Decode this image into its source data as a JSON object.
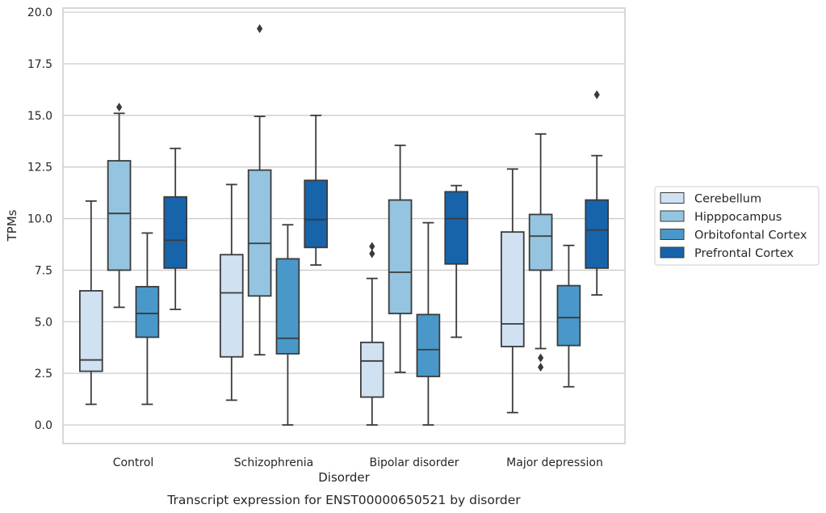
{
  "chart_data": {
    "type": "box",
    "title": "Transcript expression for ENST00000650521 by disorder",
    "xlabel": "Disorder",
    "ylabel": "TPMs",
    "ylim": [
      -0.9,
      20.2
    ],
    "yticks": [
      "0.0",
      "2.5",
      "5.0",
      "7.5",
      "10.0",
      "12.5",
      "15.0",
      "17.5",
      "20.0"
    ],
    "grid": "horizontal",
    "legend_position": "right",
    "categories": [
      "Control",
      "Schizophrenia",
      "Bipolar disorder",
      "Major depression"
    ],
    "series": [
      {
        "name": "Cerebellum",
        "color": "#d0e1f2",
        "boxes": [
          {
            "whislo": 1.0,
            "q1": 2.6,
            "med": 3.15,
            "q3": 6.5,
            "whishi": 10.85,
            "fliers": []
          },
          {
            "whislo": 1.2,
            "q1": 3.3,
            "med": 6.4,
            "q3": 8.25,
            "whishi": 11.65,
            "fliers": []
          },
          {
            "whislo": 0.0,
            "q1": 1.35,
            "med": 3.1,
            "q3": 4.0,
            "whishi": 7.1,
            "fliers": [
              8.3,
              8.65
            ]
          },
          {
            "whislo": 0.6,
            "q1": 3.8,
            "med": 4.9,
            "q3": 9.35,
            "whishi": 12.4,
            "fliers": []
          }
        ]
      },
      {
        "name": "Hipppocampus",
        "color": "#94c4df",
        "boxes": [
          {
            "whislo": 5.7,
            "q1": 7.5,
            "med": 10.25,
            "q3": 12.8,
            "whishi": 15.1,
            "fliers": [
              15.4
            ]
          },
          {
            "whislo": 3.4,
            "q1": 6.25,
            "med": 8.8,
            "q3": 12.35,
            "whishi": 14.95,
            "fliers": [
              19.2
            ]
          },
          {
            "whislo": 2.55,
            "q1": 5.4,
            "med": 7.4,
            "q3": 10.9,
            "whishi": 13.55,
            "fliers": []
          },
          {
            "whislo": 3.7,
            "q1": 7.5,
            "med": 9.15,
            "q3": 10.2,
            "whishi": 14.1,
            "fliers": [
              2.8,
              3.25
            ]
          }
        ]
      },
      {
        "name": "Orbitofontal Cortex",
        "color": "#4a98c9",
        "boxes": [
          {
            "whislo": 1.0,
            "q1": 4.25,
            "med": 5.4,
            "q3": 6.7,
            "whishi": 9.3,
            "fliers": []
          },
          {
            "whislo": 0.0,
            "q1": 3.45,
            "med": 4.2,
            "q3": 8.05,
            "whishi": 9.7,
            "fliers": []
          },
          {
            "whislo": 0.0,
            "q1": 2.35,
            "med": 3.65,
            "q3": 5.35,
            "whishi": 9.8,
            "fliers": []
          },
          {
            "whislo": 1.85,
            "q1": 3.85,
            "med": 5.2,
            "q3": 6.75,
            "whishi": 8.7,
            "fliers": []
          }
        ]
      },
      {
        "name": "Prefrontal Cortex",
        "color": "#1764ab",
        "boxes": [
          {
            "whislo": 5.6,
            "q1": 7.6,
            "med": 8.95,
            "q3": 11.05,
            "whishi": 13.4,
            "fliers": []
          },
          {
            "whislo": 7.75,
            "q1": 8.6,
            "med": 9.95,
            "q3": 11.85,
            "whishi": 15.0,
            "fliers": []
          },
          {
            "whislo": 4.25,
            "q1": 7.8,
            "med": 10.0,
            "q3": 11.3,
            "whishi": 11.6,
            "fliers": []
          },
          {
            "whislo": 6.3,
            "q1": 7.6,
            "med": 9.45,
            "q3": 10.9,
            "whishi": 13.05,
            "fliers": [
              16.0
            ]
          }
        ]
      }
    ]
  }
}
